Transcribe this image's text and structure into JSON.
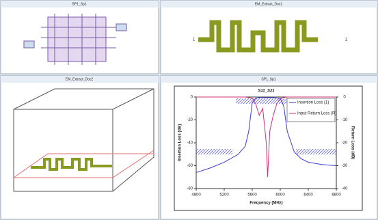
{
  "windows": [
    {
      "title": "SP1_Sp1"
    },
    {
      "title": "EM_Extract_Doc1",
      "port_labels": [
        "1",
        "2"
      ]
    },
    {
      "title": "EM_Extract_Doc2"
    },
    {
      "title": "SP1_Sp1"
    }
  ],
  "chart_data": {
    "type": "line",
    "title": "S11_S21",
    "x_label": "Frequency (MHz)",
    "y_label": "Insertion Loss (dB)",
    "y2_label": "Return Loss (dB)",
    "xlim": [
      4800,
      6800
    ],
    "xticks": [
      4800,
      5200,
      5600,
      6000,
      6400,
      6800
    ],
    "ylim": [
      -80,
      0
    ],
    "yticks": [
      0,
      -20,
      -40,
      -60,
      -80
    ],
    "y2lim": [
      -40,
      0
    ],
    "y2ticks": [
      0,
      -10,
      -20,
      -30,
      -40
    ],
    "legend": "upper right",
    "series": [
      {
        "name": "Insertion Loss (1)",
        "color": "#3a3ad0",
        "x": [
          4800,
          5000,
          5200,
          5400,
          5500,
          5550,
          5600,
          5650,
          5700,
          5800,
          5900,
          6000,
          6050,
          6100,
          6200,
          6300,
          6400,
          6600,
          6800
        ],
        "values": [
          -66,
          -62,
          -57,
          -50,
          -43,
          -30,
          -5,
          -1,
          -0.5,
          -0.5,
          -0.5,
          -1,
          -8,
          -30,
          -48,
          -54,
          -57,
          -59,
          -60
        ]
      },
      {
        "name": "Input Return Loss (R)",
        "color": "#d0307a",
        "axis": "y2",
        "x": [
          4800,
          5500,
          5600,
          5650,
          5700,
          5750,
          5800,
          5820,
          5850,
          5900,
          5950,
          6000,
          6100,
          6800
        ],
        "values": [
          0,
          0,
          -0.5,
          -3,
          -8,
          -5,
          -20,
          -35,
          -15,
          -8,
          -3,
          -0.5,
          0,
          0
        ]
      }
    ]
  }
}
